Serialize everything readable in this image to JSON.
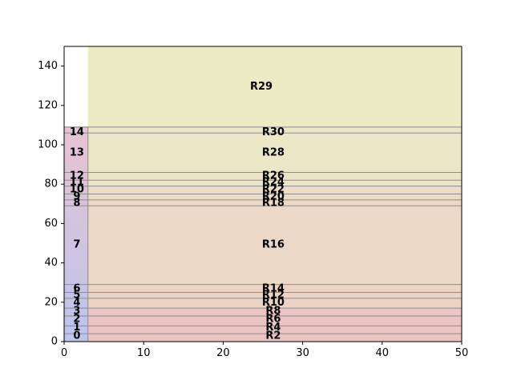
{
  "chart_data": {
    "type": "area",
    "title": "",
    "xlabel": "",
    "ylabel": "",
    "xlim": [
      0,
      50
    ],
    "ylim": [
      0,
      150
    ],
    "xticks": [
      0,
      10,
      20,
      30,
      40,
      50
    ],
    "yticks": [
      0,
      20,
      40,
      60,
      80,
      100,
      120,
      140
    ],
    "grid": false,
    "left_column": {
      "x": [
        0,
        3
      ],
      "y": [
        0,
        109
      ],
      "colors": {
        "bottom": "#bcc4ec",
        "top": "#e6c4d2"
      },
      "labels": [
        {
          "text": "0",
          "y": 2.8
        },
        {
          "text": "1",
          "y": 7.1
        },
        {
          "text": "2",
          "y": 11.3
        },
        {
          "text": "3",
          "y": 15.5
        },
        {
          "text": "4",
          "y": 19.8
        },
        {
          "text": "5",
          "y": 23.5
        },
        {
          "text": "6",
          "y": 26.8
        },
        {
          "text": "7",
          "y": 49.2
        },
        {
          "text": "8",
          "y": 70.3
        },
        {
          "text": "9",
          "y": 73.5
        },
        {
          "text": "10",
          "y": 77.2
        },
        {
          "text": "11",
          "y": 80.9
        },
        {
          "text": "12",
          "y": 84.2
        },
        {
          "text": "13",
          "y": 95.9
        },
        {
          "text": "14",
          "y": 106.4
        }
      ]
    },
    "right_regions": {
      "x": [
        3,
        50
      ],
      "boundaries": [
        0,
        4,
        8,
        13,
        17,
        22,
        25,
        29,
        69,
        72,
        75,
        79,
        82,
        86,
        106,
        109,
        150
      ],
      "colors": [
        "#ebc4c4",
        "#ebc4c4",
        "#ebc4c4",
        "#ebc4c4",
        "#ecd4c4",
        "#ecd4c4",
        "#ecd4c4",
        "#ecd8c6",
        "#ebd8c6",
        "#ecdcc6",
        "#ecdcc6",
        "#ece4c6",
        "#ece4c6",
        "#ebe6c6",
        "#ebe6c6",
        "#ebecc6"
      ],
      "labels": [
        {
          "text": "R2",
          "x": 26.3,
          "y": 2.8
        },
        {
          "text": "R4",
          "x": 26.3,
          "y": 7.1
        },
        {
          "text": "R6",
          "x": 26.3,
          "y": 11.3
        },
        {
          "text": "R8",
          "x": 26.3,
          "y": 15.5
        },
        {
          "text": "R10",
          "x": 26.3,
          "y": 19.8
        },
        {
          "text": "R12",
          "x": 26.3,
          "y": 23.5
        },
        {
          "text": "R14",
          "x": 26.3,
          "y": 26.8
        },
        {
          "text": "R16",
          "x": 26.3,
          "y": 49.2
        },
        {
          "text": "R18",
          "x": 26.3,
          "y": 70.3
        },
        {
          "text": "R20",
          "x": 26.3,
          "y": 73.5
        },
        {
          "text": "R22",
          "x": 26.3,
          "y": 77.2
        },
        {
          "text": "R24",
          "x": 26.3,
          "y": 80.9
        },
        {
          "text": "R26",
          "x": 26.3,
          "y": 84.2
        },
        {
          "text": "R28",
          "x": 26.3,
          "y": 95.9
        },
        {
          "text": "R30",
          "x": 26.3,
          "y": 106.4
        },
        {
          "text": "R29",
          "x": 24.8,
          "y": 129.4
        }
      ]
    }
  }
}
